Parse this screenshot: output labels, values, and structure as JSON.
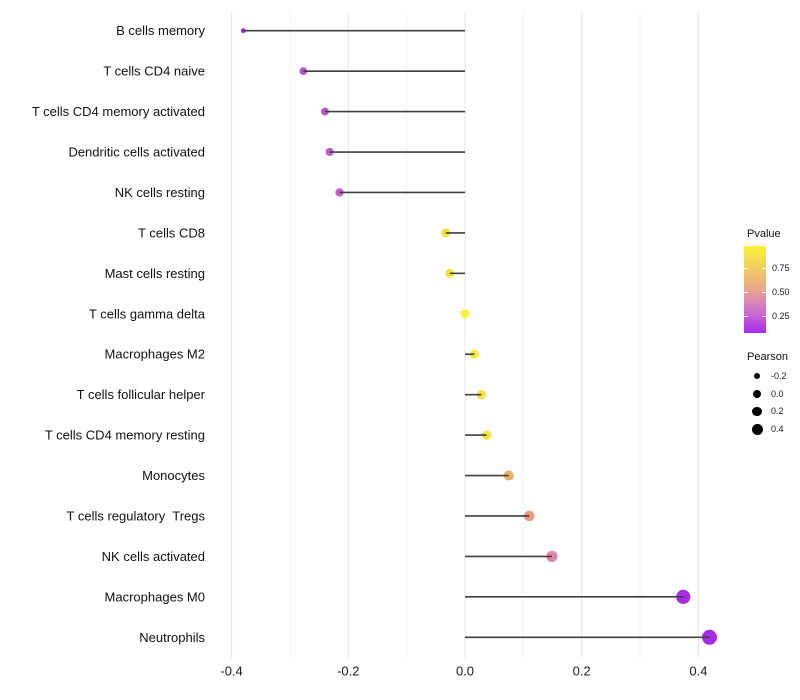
{
  "chart_data": {
    "type": "lollipop",
    "title": "",
    "xlabel": "",
    "ylabel": "",
    "orientation": "horizontal",
    "grid": {
      "show": true,
      "step": 0.1
    },
    "x_axis": {
      "min": -0.435,
      "max": 0.43,
      "ticks": [
        {
          "label": "-0.4",
          "value": -0.4
        },
        {
          "label": "-0.2",
          "value": -0.2
        },
        {
          "label": "0.0",
          "value": 0.0
        },
        {
          "label": "0.2",
          "value": 0.2
        },
        {
          "label": "0.4",
          "value": 0.4
        }
      ]
    },
    "points": [
      {
        "label": "B cells memory",
        "pearson": -0.38,
        "dot_color": "#9C30DE",
        "dot_radius": 2.4,
        "pvalue_approx": 0.08
      },
      {
        "label": "T cells CD4 naive",
        "pearson": -0.277,
        "dot_color": "#B355C9",
        "dot_radius": 3.9,
        "pvalue_approx": 0.25
      },
      {
        "label": "T cells CD4 memory activated",
        "pearson": -0.24,
        "dot_color": "#B959C8",
        "dot_radius": 4.0,
        "pvalue_approx": 0.27
      },
      {
        "label": "Dendritic cells activated",
        "pearson": -0.232,
        "dot_color": "#BE5EC6",
        "dot_radius": 4.1,
        "pvalue_approx": 0.3
      },
      {
        "label": "NK cells resting",
        "pearson": -0.215,
        "dot_color": "#C161C4",
        "dot_radius": 4.2,
        "pvalue_approx": 0.31
      },
      {
        "label": "T cells CD8",
        "pearson": -0.033,
        "dot_color": "#F3DF3E",
        "dot_radius": 4.4,
        "pvalue_approx": 0.85
      },
      {
        "label": "Mast cells resting",
        "pearson": -0.026,
        "dot_color": "#F4E23E",
        "dot_radius": 4.45,
        "pvalue_approx": 0.87
      },
      {
        "label": "T cells gamma delta",
        "pearson": 0.0,
        "dot_color": "#FAF143",
        "dot_radius": 4.5,
        "pvalue_approx": 0.97
      },
      {
        "label": "Macrophages M2",
        "pearson": 0.016,
        "dot_color": "#F7E941",
        "dot_radius": 4.6,
        "pvalue_approx": 0.92
      },
      {
        "label": "T cells follicular helper",
        "pearson": 0.028,
        "dot_color": "#F5DF44",
        "dot_radius": 4.7,
        "pvalue_approx": 0.88
      },
      {
        "label": "T cells CD4 memory resting",
        "pearson": 0.037,
        "dot_color": "#F6E342",
        "dot_radius": 4.75,
        "pvalue_approx": 0.9
      },
      {
        "label": "Monocytes",
        "pearson": 0.075,
        "dot_color": "#ECAF67",
        "dot_radius": 5.0,
        "pvalue_approx": 0.6
      },
      {
        "label": "T cells regulatory  Tregs",
        "pearson": 0.11,
        "dot_color": "#E99B79",
        "dot_radius": 5.3,
        "pvalue_approx": 0.52
      },
      {
        "label": "NK cells activated",
        "pearson": 0.149,
        "dot_color": "#DB82A9",
        "dot_radius": 5.6,
        "pvalue_approx": 0.4
      },
      {
        "label": "Macrophages M0",
        "pearson": 0.374,
        "dot_color": "#A62BE4",
        "dot_radius": 7.1,
        "pvalue_approx": 0.07
      },
      {
        "label": "Neutrophils",
        "pearson": 0.419,
        "dot_color": "#A42BE8",
        "dot_radius": 7.5,
        "pvalue_approx": 0.06
      }
    ],
    "legends": {
      "pvalue": {
        "title": "Pvalue",
        "ticks": [
          {
            "label": "0.75",
            "value": 0.75
          },
          {
            "label": "0.50",
            "value": 0.5
          },
          {
            "label": "0.25",
            "value": 0.25
          }
        ],
        "gradient_top_to_bottom": [
          "#FBF13C",
          "#F2CE60",
          "#E8A78E",
          "#CE70CE",
          "#A82BEA"
        ]
      },
      "pearson": {
        "title": "Pearson",
        "items": [
          {
            "label": "-0.2",
            "value": -0.2,
            "radius": 3.4
          },
          {
            "label": "0.0",
            "value": 0.0,
            "radius": 4.1
          },
          {
            "label": "0.2",
            "value": 0.2,
            "radius": 4.8
          },
          {
            "label": "0.4",
            "value": 0.4,
            "radius": 5.5
          }
        ]
      }
    }
  },
  "style": {
    "background": "#ffffff",
    "grid_major": "#e7e7e7",
    "grid_minor": "#f2f2f2",
    "stem_color": "#404040",
    "label_color": "#111111",
    "axis_text_color": "#1a1a1a",
    "legend_dot_color": "#000000"
  }
}
